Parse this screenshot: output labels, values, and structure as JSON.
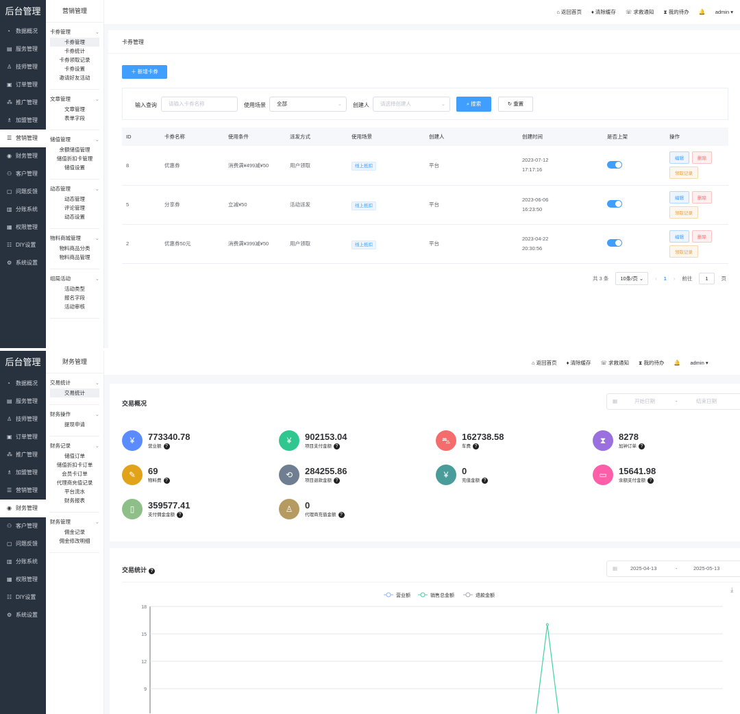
{
  "app_title": "后台管理",
  "top_nav": [
    "返回首页",
    "清除缓存",
    "求救通知",
    "我的待办"
  ],
  "user": "admin",
  "sidebar": [
    {
      "label": "数据概况",
      "icon": "pie-chart-icon"
    },
    {
      "label": "服务管理",
      "icon": "service-icon"
    },
    {
      "label": "技师管理",
      "icon": "technician-icon"
    },
    {
      "label": "订单管理",
      "icon": "order-icon"
    },
    {
      "label": "推广管理",
      "icon": "promotion-icon"
    },
    {
      "label": "加盟管理",
      "icon": "franchise-icon"
    },
    {
      "label": "营销管理",
      "icon": "marketing-icon"
    },
    {
      "label": "财务管理",
      "icon": "finance-icon"
    },
    {
      "label": "客户管理",
      "icon": "customer-icon"
    },
    {
      "label": "问题反馈",
      "icon": "feedback-icon"
    },
    {
      "label": "分账系统",
      "icon": "split-icon"
    },
    {
      "label": "权限管理",
      "icon": "permission-icon"
    },
    {
      "label": "DIY设置",
      "icon": "diy-icon"
    },
    {
      "label": "系统设置",
      "icon": "settings-icon"
    }
  ],
  "screen1": {
    "active_nav": "营销管理",
    "submenu_title": "营销管理",
    "submenu": [
      {
        "title": "卡券管理",
        "items": [
          "卡券管理",
          "卡券统计",
          "卡券领取记录",
          "卡券设置",
          "邀请好友活动"
        ],
        "active": "卡券管理"
      },
      {
        "title": "文章管理",
        "items": [
          "文章管理",
          "表单字段"
        ]
      },
      {
        "title": "储值管理",
        "items": [
          "余额储值管理",
          "储值折扣卡管理",
          "储值设置"
        ]
      },
      {
        "title": "动态管理",
        "items": [
          "动态管理",
          "评论管理",
          "动态设置"
        ]
      },
      {
        "title": "物料商城管理",
        "items": [
          "物料商品分类",
          "物料商品管理"
        ]
      },
      {
        "title": "组局活动",
        "items": [
          "活动类型",
          "报名字段",
          "活动审核"
        ]
      }
    ],
    "breadcrumb": "卡券管理",
    "add_button": "新增卡券",
    "filter": {
      "query_label": "输入查询",
      "query_placeholder": "请输入卡券名称",
      "scene_label": "使用场景",
      "scene_value": "全部",
      "creator_label": "创建人",
      "creator_placeholder": "请选择创建人",
      "search": "搜索",
      "reset": "重置"
    },
    "table": {
      "columns": [
        "ID",
        "卡券名称",
        "使用条件",
        "派发方式",
        "使用场景",
        "创建人",
        "创建时间",
        "是否上架",
        "操作"
      ],
      "rows": [
        {
          "id": "8",
          "name": "优惠券",
          "cond": "消费满¥499减¥50",
          "dist": "用户领取",
          "scene": "线上抵扣",
          "creator": "平台",
          "date": "2023-07-12",
          "time": "17:17:16",
          "on": true
        },
        {
          "id": "5",
          "name": "分享券",
          "cond": "立减¥50",
          "dist": "活动派发",
          "scene": "线上抵扣",
          "creator": "平台",
          "date": "2023-06-06",
          "time": "16:23:50",
          "on": true
        },
        {
          "id": "2",
          "name": "优惠券50元",
          "cond": "消费满¥399减¥50",
          "dist": "用户领取",
          "scene": "线上抵扣",
          "creator": "平台",
          "date": "2023-04-22",
          "time": "20:30:56",
          "on": true
        }
      ],
      "actions": {
        "edit": "编辑",
        "delete": "删除",
        "records": "领取记录"
      }
    },
    "pagination": {
      "total": "共 3 条",
      "page_size": "10条/页",
      "current": "1",
      "goto": "前往",
      "goto_value": "1",
      "page_unit": "页"
    }
  },
  "screen2": {
    "active_nav": "财务管理",
    "submenu_title": "财务管理",
    "submenu": [
      {
        "title": "交易统计",
        "items": [
          "交易统计"
        ],
        "active": "交易统计"
      },
      {
        "title": "财务操作",
        "items": [
          "提现申请"
        ]
      },
      {
        "title": "财务记录",
        "items": [
          "储值订单",
          "储值折扣卡订单",
          "会员卡订单",
          "代理商充值记录",
          "平台流水",
          "财务报表"
        ]
      },
      {
        "title": "财务管理",
        "items": [
          "佣金记录",
          "佣金修改明细"
        ]
      }
    ],
    "overview_title": "交易概况",
    "date_start_placeholder": "开始日期",
    "date_end_placeholder": "结束日期",
    "date_sep": "-",
    "stats": [
      {
        "value": "773340.78",
        "label": "营业额",
        "color": "#5b8cff",
        "icon": "money-bag-icon"
      },
      {
        "value": "902153.04",
        "label": "项目支付金额",
        "color": "#2fc690",
        "icon": "yuan-card-icon"
      },
      {
        "value": "162738.58",
        "label": "车费",
        "color": "#f56c6c",
        "icon": "car-icon"
      },
      {
        "value": "8278",
        "label": "加钟订单",
        "color": "#9a6fde",
        "icon": "hourglass-icon"
      },
      {
        "value": "69",
        "label": "物料费",
        "color": "#e0a31a",
        "icon": "tag-icon"
      },
      {
        "value": "284255.86",
        "label": "项目退款金额",
        "color": "#6f7f91",
        "icon": "refund-icon"
      },
      {
        "value": "0",
        "label": "充值金额",
        "color": "#4a9c9a",
        "icon": "recharge-icon"
      },
      {
        "value": "15641.98",
        "label": "余额支付金额",
        "color": "#ff5fa8",
        "icon": "wallet-icon"
      },
      {
        "value": "359577.41",
        "label": "支付佣金金额",
        "color": "#8fbf88",
        "icon": "commission-icon"
      },
      {
        "value": "0",
        "label": "代理商充值金额",
        "color": "#b59a62",
        "icon": "agent-icon"
      }
    ],
    "chart_title": "交易统计",
    "chart_date_start": "2025-04-13",
    "chart_date_end": "2025-05-13"
  },
  "chart_data": {
    "type": "line",
    "legend": [
      "营业额",
      "销售总金额",
      "退款金额"
    ],
    "legend_placement": "top",
    "colors": [
      "#8fb3ff",
      "#3fd3a0",
      "#a0a6b5"
    ],
    "ylim": [
      0,
      18
    ],
    "yticks": [
      18,
      15,
      12,
      9
    ],
    "grid": true,
    "x_range": [
      "2025-04-13",
      "2025-05-13"
    ],
    "series": [
      {
        "name": "营业额",
        "values": [
          0,
          0,
          0,
          0,
          0,
          0,
          0,
          0,
          0,
          0,
          0,
          0,
          0,
          0,
          0,
          0,
          0,
          0,
          0,
          0,
          0,
          0,
          0,
          0,
          0,
          0,
          0,
          0,
          0,
          0,
          0
        ]
      },
      {
        "name": "销售总金额",
        "values": [
          0,
          0,
          0,
          0,
          0,
          0,
          0,
          0,
          0,
          0,
          0,
          0,
          0,
          0,
          0,
          0,
          0,
          0,
          0,
          0,
          0,
          16,
          0,
          0,
          0,
          0,
          0,
          0,
          0,
          0,
          0
        ]
      },
      {
        "name": "退款金额",
        "values": [
          0,
          0,
          0,
          0,
          0,
          0,
          0,
          0,
          0,
          0,
          0,
          0,
          0,
          0,
          0,
          0,
          0,
          0,
          0,
          0,
          0,
          0,
          0,
          0,
          0,
          0,
          0,
          0,
          0,
          0,
          0
        ]
      }
    ]
  }
}
